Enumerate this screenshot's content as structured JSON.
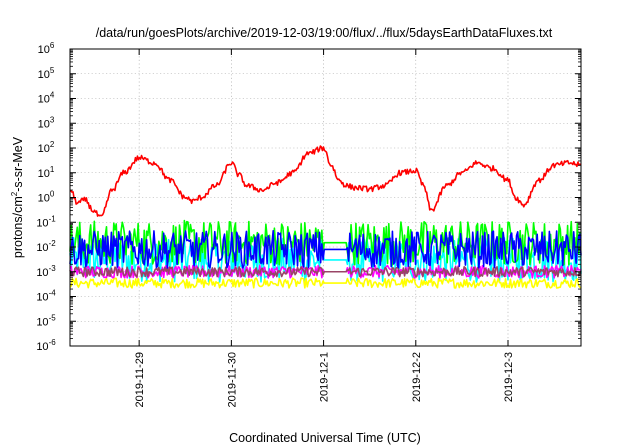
{
  "chart_data": {
    "type": "line",
    "title": "/data/run/goesPlots/archive/2019-12-03/19:00/flux/../flux/5daysEarthDataFluxes.txt",
    "xlabel": "Coordinated Universal Time (UTC)",
    "ylabel": "protons/cm²-s-sr-MeV",
    "yscale": "log",
    "ylim": [
      1e-06,
      1000000.0
    ],
    "xlim": [
      "2019-11-28 06:00",
      "2019-12-03 19:00"
    ],
    "y_tick_bases": [
      "10",
      "10",
      "10",
      "10",
      "10",
      "10",
      "10",
      "10",
      "10",
      "10",
      "10",
      "10",
      "10"
    ],
    "y_tick_exponents": [
      "-6",
      "-5",
      "-4",
      "-3",
      "-2",
      "-1",
      "0",
      "1",
      "2",
      "3",
      "4",
      "5",
      "6"
    ],
    "x_tick_labels": [
      "2019-11-29",
      "2019-11-30",
      "2019-12-1",
      "2019-12-2",
      "2019-12-3"
    ],
    "x_tick_dates": [
      "2019-11-29 00:00",
      "2019-11-30 00:00",
      "2019-12-01 00:00",
      "2019-12-02 00:00",
      "2019-12-03 00:00"
    ],
    "data_gap": [
      "2019-12-01 00:00",
      "2019-12-01 06:00"
    ],
    "grid": true,
    "legend": "none",
    "series": [
      {
        "color": "#ff0000",
        "x": [
          "2019-11-28 06:00",
          "2019-11-28 08:00",
          "2019-11-28 10:00",
          "2019-11-28 12:00",
          "2019-11-28 14:00",
          "2019-11-28 17:00",
          "2019-11-28 20:00",
          "2019-11-29 00:00",
          "2019-11-29 04:00",
          "2019-11-29 08:00",
          "2019-11-29 12:00",
          "2019-11-29 14:00",
          "2019-11-29 16:00",
          "2019-11-29 20:00",
          "2019-11-30 00:00",
          "2019-11-30 02:00",
          "2019-11-30 04:00",
          "2019-11-30 08:00",
          "2019-11-30 12:00",
          "2019-11-30 16:00",
          "2019-11-30 20:00",
          "2019-12-01 00:00",
          "2019-12-01 02:00",
          "2019-12-01 04:00",
          "2019-12-01 06:00",
          "2019-12-01 08:00",
          "2019-12-01 12:00",
          "2019-12-01 16:00",
          "2019-12-01 20:00",
          "2019-12-02 00:00",
          "2019-12-02 02:00",
          "2019-12-02 04:00",
          "2019-12-02 08:00",
          "2019-12-02 12:00",
          "2019-12-02 16:00",
          "2019-12-02 20:00",
          "2019-12-03 00:00",
          "2019-12-03 02:00",
          "2019-12-03 04:00",
          "2019-12-03 08:00",
          "2019-12-03 12:00",
          "2019-12-03 16:00",
          "2019-12-03 19:00"
        ],
        "values": [
          2,
          0.6,
          0.8,
          0.3,
          0.15,
          2,
          10,
          40,
          25,
          5,
          1,
          0.7,
          1,
          3,
          25,
          8,
          3,
          2,
          4,
          10,
          60,
          100,
          20,
          5,
          3,
          2.5,
          2.2,
          3,
          10,
          12,
          3,
          0.3,
          3,
          10,
          25,
          15,
          5,
          1,
          0.5,
          5,
          20,
          25,
          20
        ]
      },
      {
        "color": "#00ff00",
        "base": 0.015,
        "spread": 0.9,
        "x_from": "2019-11-28 06:00",
        "x_to": "2019-12-03 19:00"
      },
      {
        "color": "#00ffff",
        "base": 0.003,
        "spread": 0.9,
        "x_from": "2019-11-28 06:00",
        "x_to": "2019-12-03 19:00"
      },
      {
        "color": "#0000ff",
        "base": 0.008,
        "spread": 0.75,
        "x_from": "2019-11-28 06:00",
        "x_to": "2019-12-03 19:00"
      },
      {
        "color": "#ff00ff",
        "base": 0.001,
        "spread": 0.25,
        "x_from": "2019-11-28 06:00",
        "x_to": "2019-12-03 19:00"
      },
      {
        "color": "#ffff00",
        "base": 0.00035,
        "spread": 0.2,
        "x_from": "2019-11-28 06:00",
        "x_to": "2019-12-03 19:00"
      },
      {
        "color": "#994466",
        "base": 0.001,
        "spread": 0.2,
        "x_from": "2019-11-28 06:00",
        "x_to": "2019-12-03 19:00"
      }
    ]
  }
}
